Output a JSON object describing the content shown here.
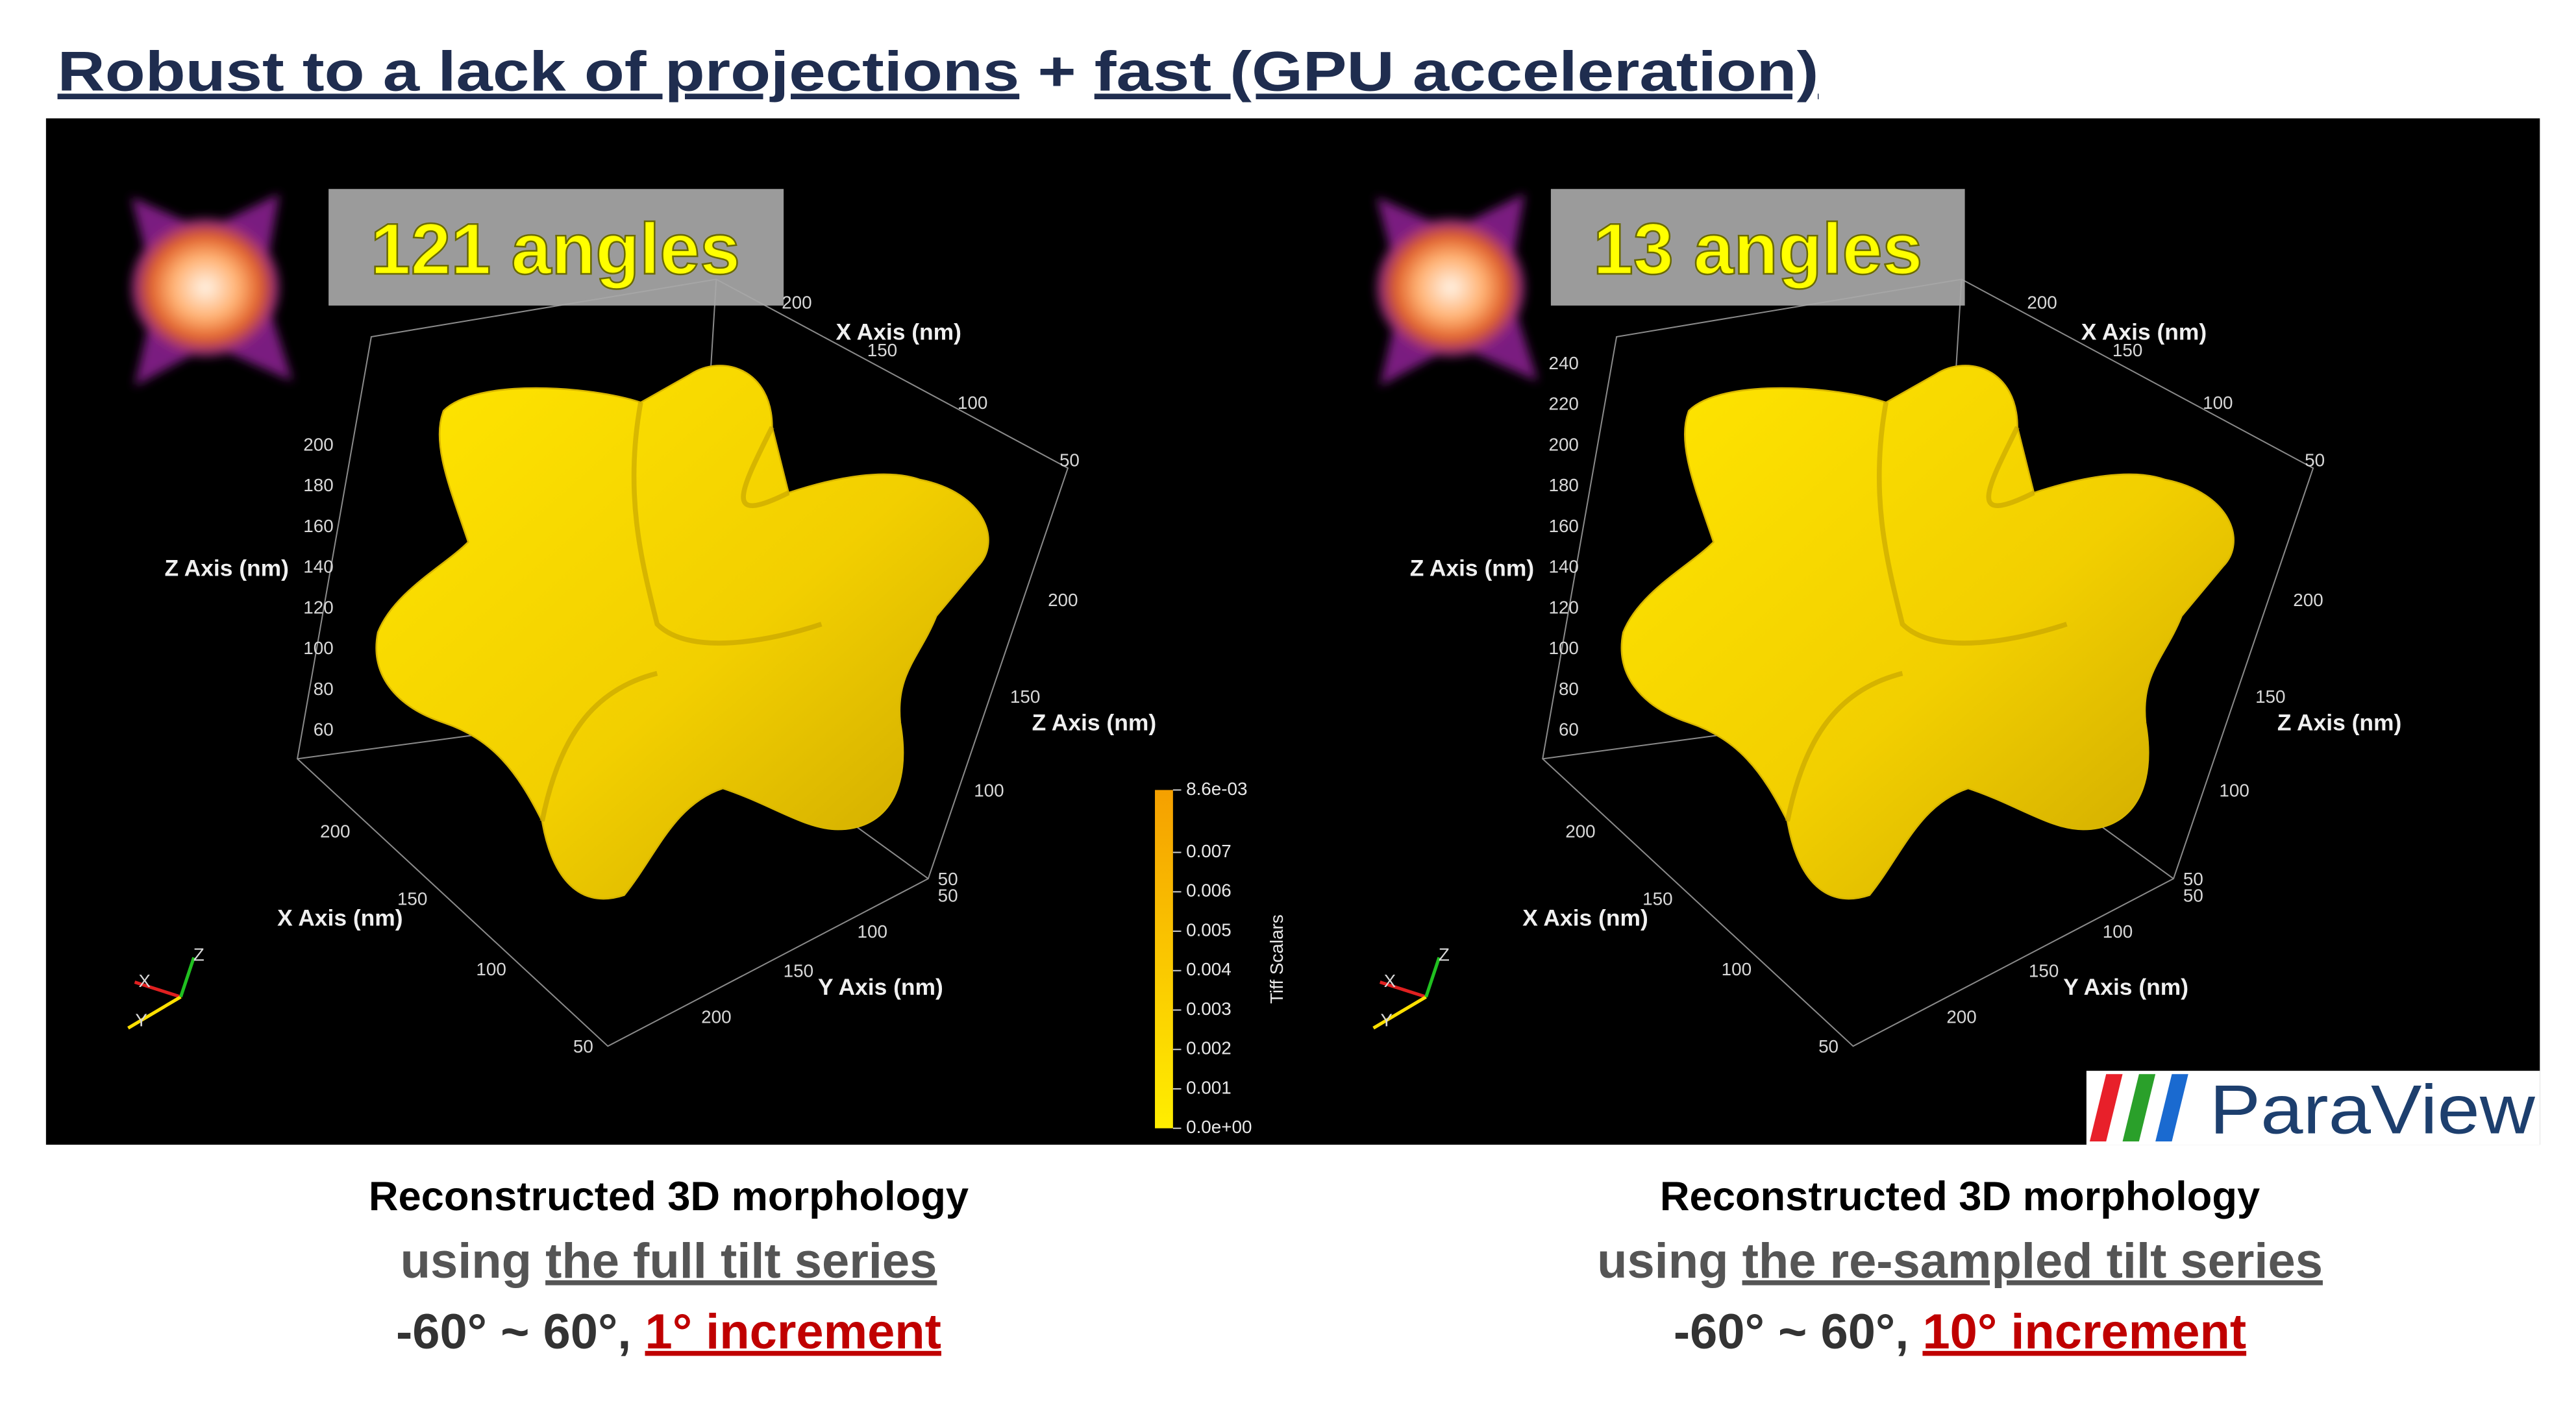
{
  "title": {
    "parts": [
      "Robust to a lack of projections",
      " + ",
      "fast (GPU acceleration)"
    ]
  },
  "panels": [
    {
      "label": "121 angles",
      "axes": {
        "x_axis_label": "X Axis (nm)",
        "y_axis_label": "Y Axis (nm)",
        "z_axis_label": "Z Axis (nm)",
        "z_ticks_left": [
          200,
          180,
          160,
          140,
          120,
          100,
          80,
          60
        ],
        "x_ticks_top": [
          200,
          150,
          100,
          50
        ],
        "z_ticks_right": [
          200,
          150,
          100,
          50
        ],
        "y_ticks_bottom": [
          50,
          100,
          150,
          200
        ],
        "x_ticks_bottom": [
          200,
          150,
          100,
          50
        ]
      },
      "orientation": [
        "X",
        "Y",
        "Z"
      ],
      "caption": {
        "line1": "Reconstructed 3D morphology",
        "line2": [
          "using ",
          "the full tilt series"
        ],
        "line3": [
          "-60° ~ 60°, ",
          "1° increment"
        ]
      }
    },
    {
      "label": "13 angles",
      "axes": {
        "x_axis_label": "X Axis (nm)",
        "y_axis_label": "Y Axis (nm)",
        "z_axis_label": "Z Axis (nm)",
        "z_ticks_left": [
          240,
          220,
          200,
          180,
          160,
          140,
          120,
          100,
          80,
          60
        ],
        "x_ticks_top": [
          200,
          150,
          100,
          50
        ],
        "z_ticks_right": [
          200,
          150,
          100,
          50
        ],
        "y_ticks_bottom": [
          50,
          100,
          150,
          200
        ],
        "x_ticks_bottom": [
          200,
          150,
          100,
          50
        ]
      },
      "orientation": [
        "X",
        "Y",
        "Z"
      ],
      "caption": {
        "line1": "Reconstructed 3D morphology",
        "line2": [
          "using ",
          "the re-sampled tilt series"
        ],
        "line3": [
          "-60° ~ 60°, ",
          "10° increment"
        ]
      }
    }
  ],
  "colorbar": {
    "title": "Tiff Scalars",
    "labels": [
      "8.6e-03",
      "0.007",
      "0.006",
      "0.005",
      "0.004",
      "0.003",
      "0.002",
      "0.001",
      "0.0e+00"
    ]
  },
  "logo": "ParaView"
}
